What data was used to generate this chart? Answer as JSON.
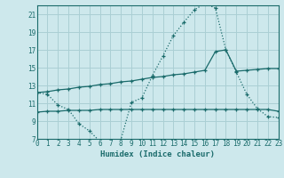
{
  "xlabel": "Humidex (Indice chaleur)",
  "background_color": "#cde8ec",
  "grid_color": "#aacfd4",
  "line_color": "#1a6b6b",
  "xlim": [
    0,
    23
  ],
  "ylim": [
    7,
    22
  ],
  "yticks": [
    7,
    9,
    11,
    13,
    15,
    17,
    19,
    21
  ],
  "xticks": [
    0,
    1,
    2,
    3,
    4,
    5,
    6,
    7,
    8,
    9,
    10,
    11,
    12,
    13,
    14,
    15,
    16,
    17,
    18,
    19,
    20,
    21,
    22,
    23
  ],
  "curve1_x": [
    0,
    1,
    2,
    3,
    4,
    5,
    6,
    7,
    8,
    9,
    10,
    11,
    12,
    13,
    14,
    15,
    16,
    17,
    18,
    19,
    20,
    21,
    22,
    23
  ],
  "curve1_y": [
    12.2,
    12.0,
    10.8,
    10.3,
    8.7,
    7.9,
    6.7,
    6.5,
    6.9,
    11.1,
    11.6,
    14.1,
    16.3,
    18.6,
    20.1,
    21.5,
    22.2,
    21.7,
    17.0,
    14.5,
    12.0,
    10.4,
    9.5,
    9.4
  ],
  "curve2_x": [
    0,
    1,
    2,
    3,
    4,
    5,
    6,
    7,
    8,
    9,
    10,
    11,
    12,
    13,
    14,
    15,
    16,
    17,
    18,
    19,
    20,
    21,
    22,
    23
  ],
  "curve2_y": [
    12.2,
    12.3,
    12.5,
    12.6,
    12.8,
    12.9,
    13.1,
    13.2,
    13.4,
    13.5,
    13.7,
    13.9,
    14.0,
    14.2,
    14.3,
    14.5,
    14.7,
    16.8,
    17.0,
    14.6,
    14.7,
    14.8,
    14.9,
    14.9
  ],
  "curve3_x": [
    0,
    1,
    2,
    3,
    4,
    5,
    6,
    7,
    8,
    9,
    10,
    11,
    12,
    13,
    14,
    15,
    16,
    17,
    18,
    19,
    20,
    21,
    22,
    23
  ],
  "curve3_y": [
    10.0,
    10.1,
    10.1,
    10.2,
    10.2,
    10.2,
    10.3,
    10.3,
    10.3,
    10.3,
    10.3,
    10.3,
    10.3,
    10.3,
    10.3,
    10.3,
    10.3,
    10.3,
    10.3,
    10.3,
    10.3,
    10.3,
    10.3,
    10.1
  ]
}
